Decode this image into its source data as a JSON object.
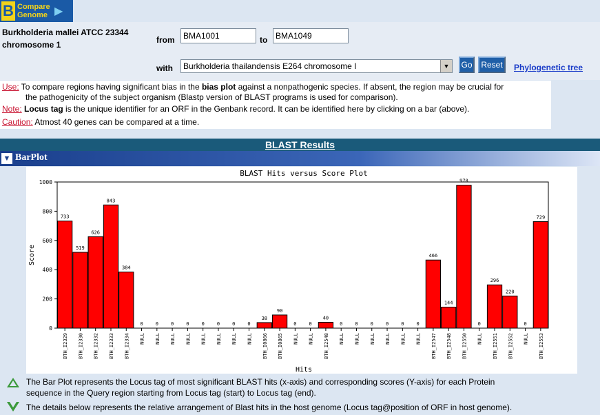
{
  "logo": {
    "letter": "B",
    "text": "Compare Genome"
  },
  "organism": {
    "line1": "Burkholderia mallei ATCC 23344",
    "line2": "chromosome 1"
  },
  "form": {
    "from_label": "from",
    "from_value": "BMA1001",
    "to_label": "to",
    "to_value": "BMA1049",
    "with_label": "with",
    "with_value": "Burkholderia thailandensis E264 chromosome I",
    "go_label": "Go",
    "reset_label": "Reset",
    "phylo_label": "Phylogenetic tree"
  },
  "notes": {
    "use_tag": "Use:",
    "use_text_a": " To compare regions having significant bias in the ",
    "use_bold": "bias plot",
    "use_text_b": " against a nonpathogenic species. If absent, the region may be crucial for",
    "use_text_c": "the pathogenicity of the subject organism (Blastp version of BLAST programs is used for comparison).",
    "note_tag": "Note:",
    "note_bold": "Locus tag",
    "note_text": " is the unique identifier for an ORF in the Genbank record. It can be identified here by clicking on a bar (above).",
    "caution_tag": "Caution:",
    "caution_text": " Atmost 40 genes can be compared at a time."
  },
  "section": {
    "blast_title": "BLAST Results",
    "barplot_title": "BarPlot"
  },
  "colors": {
    "bar": "#ff0000",
    "header_dark": "#1a5a7a"
  },
  "chart_data": {
    "type": "bar",
    "title": "BLAST Hits versus Score Plot",
    "xlabel": "Hits",
    "ylabel": "Score",
    "ylim": [
      0,
      1000
    ],
    "yticks": [
      0,
      200,
      400,
      600,
      800,
      1000
    ],
    "categories": [
      "BTH_I2329",
      "BTH_I2330",
      "BTH_I2332",
      "BTH_I2333",
      "BTH_I2334",
      "NULL",
      "NULL",
      "NULL",
      "NULL",
      "NULL",
      "NULL",
      "NULL",
      "NULL",
      "BTH_I0866",
      "BTH_I0865",
      "NULL",
      "NULL",
      "BTH_I2548",
      "NULL",
      "NULL",
      "NULL",
      "NULL",
      "NULL",
      "NULL",
      "BTH_I2547",
      "BTH_I2548",
      "BTH_I2550",
      "NULL",
      "BTH_I2551",
      "BTH_I2552",
      "NULL",
      "BTH_I2553"
    ],
    "values": [
      733,
      519,
      626,
      843,
      384,
      0,
      0,
      0,
      0,
      0,
      0,
      0,
      0,
      38,
      90,
      0,
      0,
      40,
      0,
      0,
      0,
      0,
      0,
      0,
      466,
      144,
      978,
      0,
      296,
      220,
      0,
      729
    ]
  },
  "desc": {
    "line1": "The Bar Plot represents the Locus tag of most significant BLAST hits (x-axis) and corresponding scores (Y-axis) for each Protein",
    "line2": "sequence in the Query  region starting from Locus tag (start) to Locus tag (end).",
    "line3": "The details below represents the relative arrangement of Blast hits in the host genome (Locus tag@position of ORF in host genome)."
  }
}
